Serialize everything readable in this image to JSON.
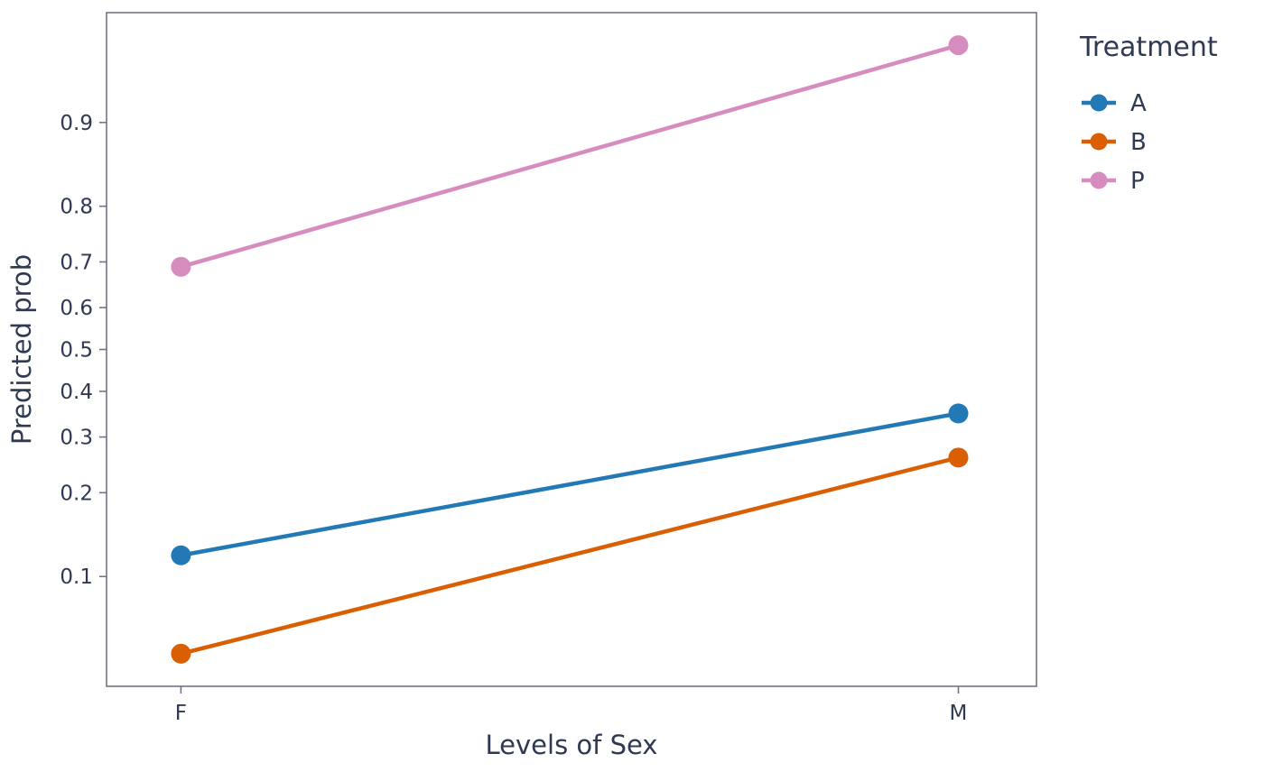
{
  "chart_data": {
    "type": "line",
    "title": "",
    "xlabel": "Levels of Sex",
    "ylabel": "Predicted prob",
    "categories": [
      "F",
      "M"
    ],
    "series": [
      {
        "name": "A",
        "color": "#2279b5",
        "values": [
          0.12,
          0.35
        ]
      },
      {
        "name": "B",
        "color": "#d95f02",
        "values": [
          0.05,
          0.26
        ]
      },
      {
        "name": "P",
        "color": "#d68cbe",
        "values": [
          0.69,
          0.95
        ]
      }
    ],
    "legend_title": "Treatment",
    "legend_position": "right",
    "y_scale": "logit",
    "y_ticks": [
      0.1,
      0.2,
      0.3,
      0.4,
      0.5,
      0.6,
      0.7,
      0.8,
      0.9
    ],
    "ylim": [
      0.04,
      0.96
    ],
    "grid": false,
    "marker": "circle-on-line"
  },
  "styles": {
    "text_color": "#2f3a52",
    "border_color": "#6f7584",
    "tick_color": "#6f7584",
    "background": "#ffffff",
    "line_width": 4.5,
    "point_radius": 11
  }
}
